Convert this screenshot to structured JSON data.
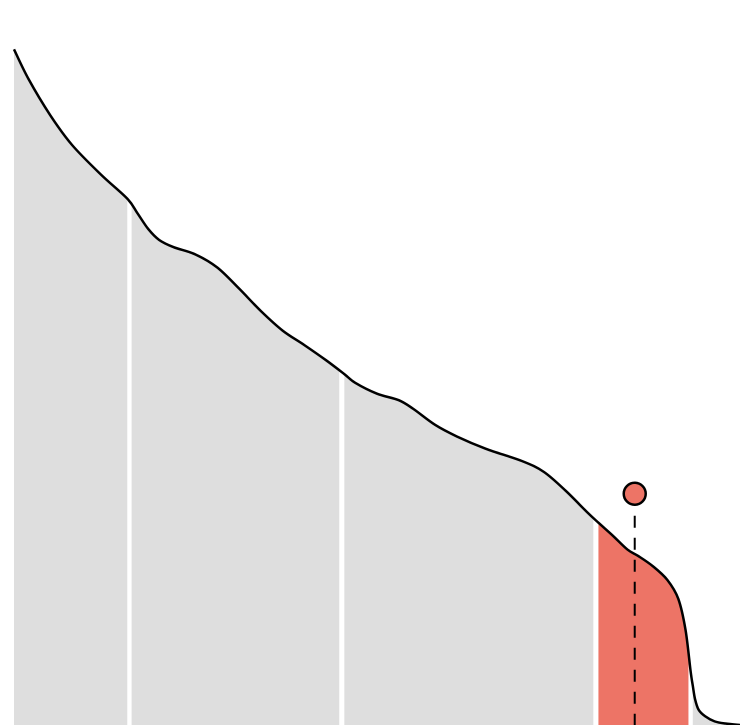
{
  "chart_data": {
    "type": "area",
    "title": "",
    "xlabel": "",
    "ylabel": "",
    "xlim": [
      0,
      100
    ],
    "ylim": [
      0,
      100
    ],
    "grid": false,
    "legend": "none",
    "curve": {
      "x": [
        0,
        2,
        5,
        8,
        12,
        15.6,
        17,
        18.5,
        20,
        22,
        25,
        28,
        31,
        34,
        37,
        40,
        43,
        45.5,
        47,
        50,
        53,
        55,
        58,
        61,
        65,
        70,
        73,
        76,
        78.9,
        80.5,
        82.5,
        84.5,
        86,
        88,
        90,
        91.5,
        92.5,
        93.2,
        93.5,
        93.8,
        94.3,
        95.2,
        96.5,
        98,
        100
      ],
      "y": [
        93.2,
        89.1,
        84.1,
        80.0,
        75.9,
        72.6,
        70.6,
        68.4,
        66.9,
        65.9,
        64.9,
        63.1,
        60.2,
        57.1,
        54.4,
        52.4,
        50.3,
        48.4,
        47.2,
        45.7,
        44.8,
        43.6,
        41.4,
        39.8,
        38.1,
        36.4,
        34.9,
        32.3,
        29.4,
        27.9,
        26.1,
        24.2,
        23.3,
        21.9,
        20.0,
        17.4,
        13.1,
        7.4,
        5.4,
        3.6,
        2.1,
        1.2,
        0.5,
        0.2,
        0.0
      ]
    },
    "bands": [
      {
        "x0": 0,
        "x1": 15.6,
        "highlight": false
      },
      {
        "x0": 16.2,
        "x1": 44.8,
        "highlight": false
      },
      {
        "x0": 45.5,
        "x1": 79.8,
        "highlight": false
      },
      {
        "x0": 80.5,
        "x1": 92.9,
        "highlight": true
      },
      {
        "x0": 93.5,
        "x1": 100,
        "highlight": false
      }
    ],
    "marker": {
      "x": 85.5,
      "y": 31.9
    },
    "colors": {
      "band_fill": "#dedede",
      "highlight_fill": "#ed7466",
      "curve_stroke": "#000000",
      "background": "#ffffff"
    }
  }
}
